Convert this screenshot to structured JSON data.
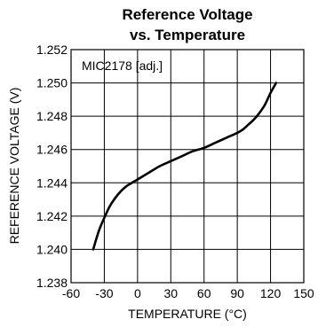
{
  "chart_data": {
    "type": "line",
    "title_lines": [
      "Reference Voltage",
      "vs. Temperature"
    ],
    "xlabel": "TEMPERATURE (°C)",
    "ylabel": "REFERENCE VOLTAGE (V)",
    "xlim": [
      -60,
      150
    ],
    "ylim": [
      1.238,
      1.252
    ],
    "xticks": [
      -60,
      -30,
      0,
      30,
      60,
      90,
      120,
      150
    ],
    "xtick_labels": [
      "-60",
      "-30",
      "0",
      "30",
      "60",
      "90",
      "120",
      "150"
    ],
    "yticks": [
      1.238,
      1.24,
      1.242,
      1.244,
      1.246,
      1.248,
      1.25,
      1.252
    ],
    "ytick_labels": [
      "1.238",
      "1.240",
      "1.242",
      "1.244",
      "1.246",
      "1.248",
      "1.250",
      "1.252"
    ],
    "grid": true,
    "annotation": "MIC2178 [adj.]",
    "series": [
      {
        "x": [
          -40,
          -35,
          -30,
          -25,
          -20,
          -15,
          -10,
          -5,
          0,
          10,
          20,
          30,
          40,
          50,
          60,
          70,
          80,
          90,
          95,
          100,
          105,
          110,
          115,
          120,
          125
        ],
        "values": [
          1.24,
          1.2411,
          1.2419,
          1.2426,
          1.2431,
          1.2435,
          1.2438,
          1.244,
          1.2442,
          1.2446,
          1.245,
          1.2453,
          1.2456,
          1.2459,
          1.2461,
          1.2464,
          1.2467,
          1.247,
          1.2472,
          1.2475,
          1.2478,
          1.2482,
          1.2487,
          1.2494,
          1.25
        ]
      }
    ]
  }
}
